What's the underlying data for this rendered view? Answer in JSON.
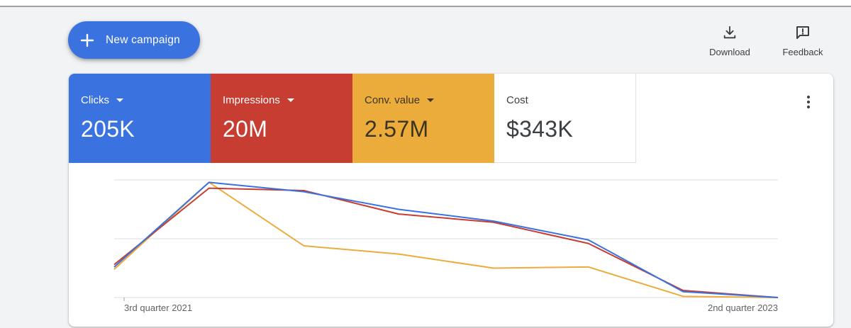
{
  "toolbar": {
    "new_campaign_label": "New campaign",
    "download_label": "Download",
    "feedback_label": "Feedback"
  },
  "metrics": [
    {
      "label": "Clicks",
      "value": "205K",
      "color": "#3a72e0",
      "has_dropdown": true
    },
    {
      "label": "Impressions",
      "value": "20M",
      "color": "#c83d31",
      "has_dropdown": true
    },
    {
      "label": "Conv. value",
      "value": "2.57M",
      "color": "#ecac3c",
      "has_dropdown": true
    },
    {
      "label": "Cost",
      "value": "$343K",
      "color": "#ffffff",
      "has_dropdown": false
    }
  ],
  "icons": {
    "new_campaign": "plus-icon",
    "download": "download-icon",
    "feedback": "feedback-icon",
    "more": "more-vert-icon"
  },
  "chart_data": {
    "type": "line",
    "x_start_label": "3rd quarter 2021",
    "x_end_label": "2nd quarter 2023",
    "y_min": 0,
    "y_max": 100,
    "grid": true,
    "series": [
      {
        "color": "#3a72e0",
        "values": [
          26,
          98,
          90,
          75,
          65,
          49,
          5,
          0
        ]
      },
      {
        "color": "#c83d31",
        "values": [
          28,
          93,
          91,
          71,
          64,
          46,
          6,
          0
        ]
      },
      {
        "color": "#ecac3c",
        "values": [
          24,
          98,
          44,
          37,
          25,
          26,
          1,
          0
        ]
      }
    ]
  }
}
